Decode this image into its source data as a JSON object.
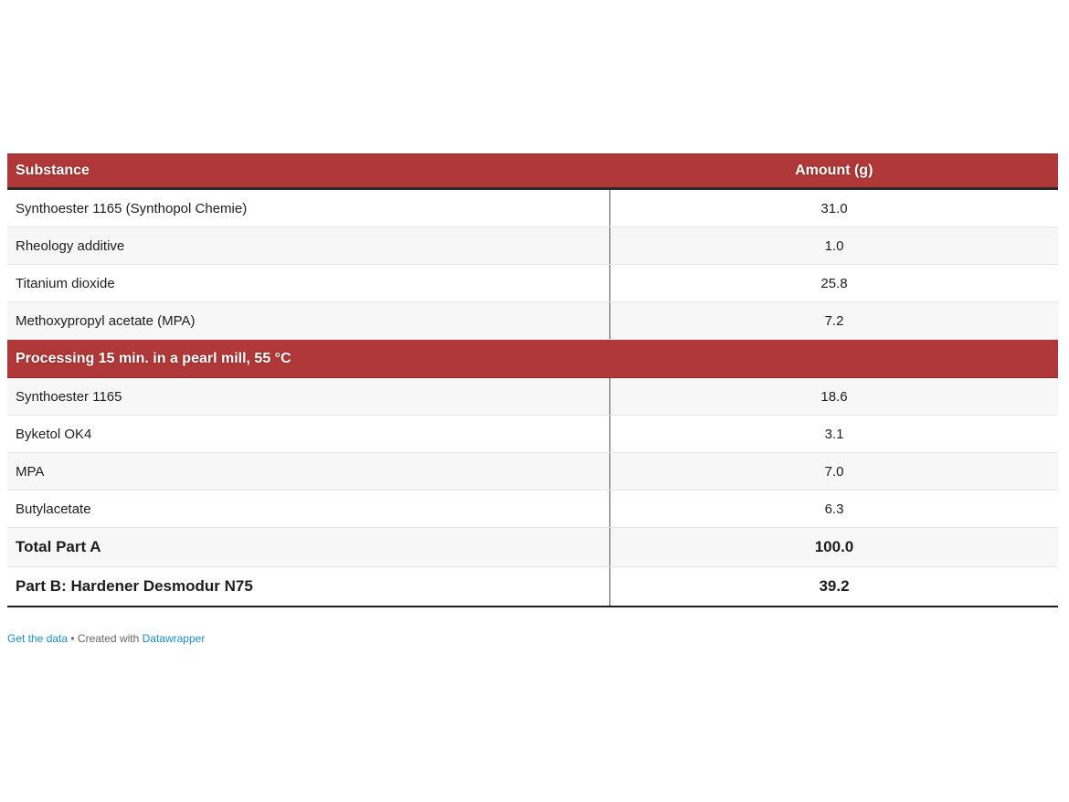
{
  "table": {
    "headers": [
      "Substance",
      "Amount (g)"
    ],
    "rows": [
      {
        "substance": "Synthoester 1165 (Synthopol Chemie)",
        "amount": "31.0"
      },
      {
        "substance": "Rheology additive",
        "amount": "1.0"
      },
      {
        "substance": "Titanium dioxide",
        "amount": "25.8"
      },
      {
        "substance": "Methoxypropyl acetate (MPA)",
        "amount": "7.2"
      },
      {
        "substance": "Processing 15 min. in a pearl mill, 55 °C",
        "amount": ""
      },
      {
        "substance": "Synthoester 1165",
        "amount": "18.6"
      },
      {
        "substance": "Byketol OK4",
        "amount": "3.1"
      },
      {
        "substance": "MPA",
        "amount": "7.0"
      },
      {
        "substance": "Butylacetate",
        "amount": "6.3"
      },
      {
        "substance": "Total Part A",
        "amount": "100.0"
      },
      {
        "substance": "Part B: Hardener Desmodur N75",
        "amount": "39.2"
      }
    ]
  },
  "footer": {
    "get_data": "Get the data",
    "separator": " • Created with ",
    "datawrapper": "Datawrapper"
  },
  "colors": {
    "header_bg": "#b03838",
    "link": "#1a8fc4"
  }
}
